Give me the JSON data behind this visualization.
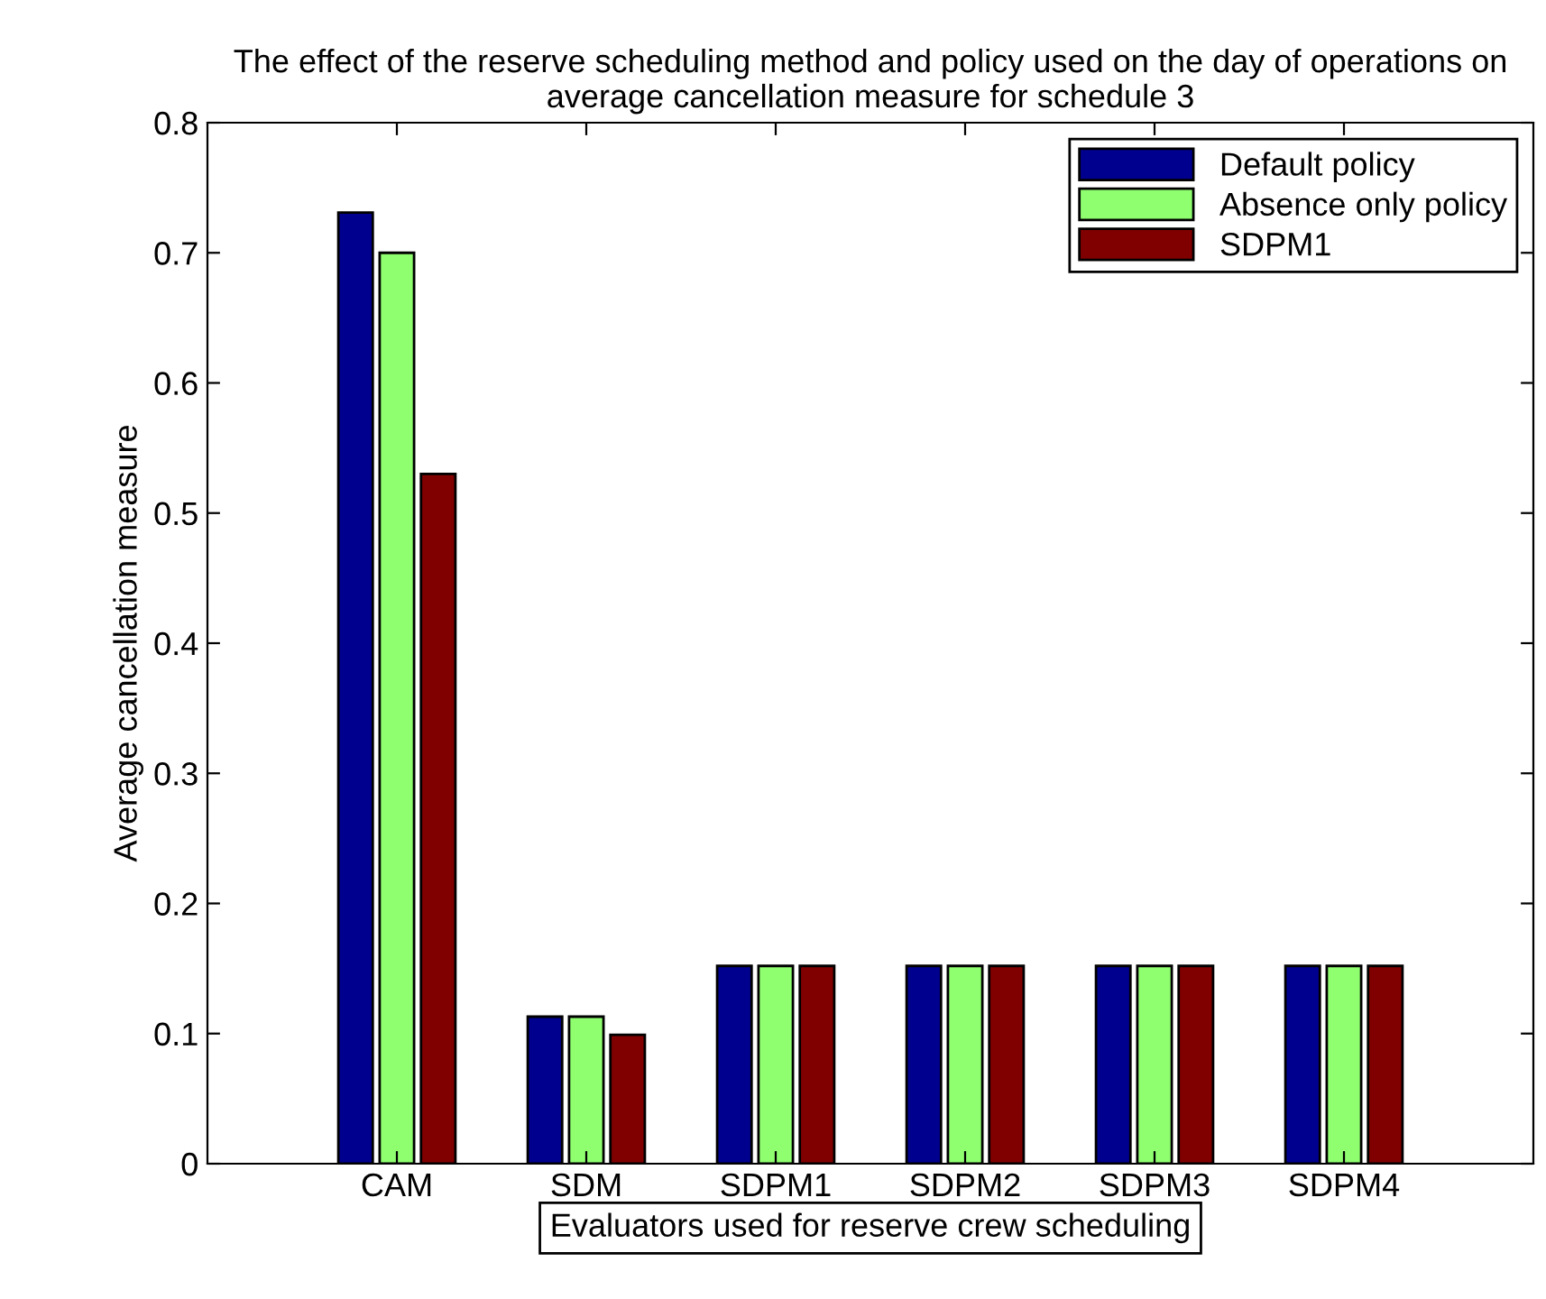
{
  "chart_data": {
    "type": "bar",
    "title": "The effect of the reserve scheduling method and policy used on the day of operations on average cancellation measure for schedule 3",
    "xlabel": "Evaluators used for reserve crew scheduling",
    "ylabel": "Average cancellation measure",
    "categories": [
      "CAM",
      "SDM",
      "SDPM1",
      "SDPM2",
      "SDPM3",
      "SDPM4"
    ],
    "series": [
      {
        "name": "Default policy",
        "color": "#00008f",
        "values": [
          0.731,
          0.113,
          0.152,
          0.152,
          0.152,
          0.152
        ]
      },
      {
        "name": "Absence only policy",
        "color": "#8fff70",
        "values": [
          0.7,
          0.113,
          0.152,
          0.152,
          0.152,
          0.152
        ]
      },
      {
        "name": "SDPM1",
        "color": "#800000",
        "values": [
          0.53,
          0.099,
          0.152,
          0.152,
          0.152,
          0.152
        ]
      }
    ],
    "ylim": [
      0,
      0.8
    ],
    "yticks": [
      0,
      0.1,
      0.2,
      0.3,
      0.4,
      0.5,
      0.6,
      0.7,
      0.8
    ],
    "grid": false,
    "legend": "top right"
  }
}
